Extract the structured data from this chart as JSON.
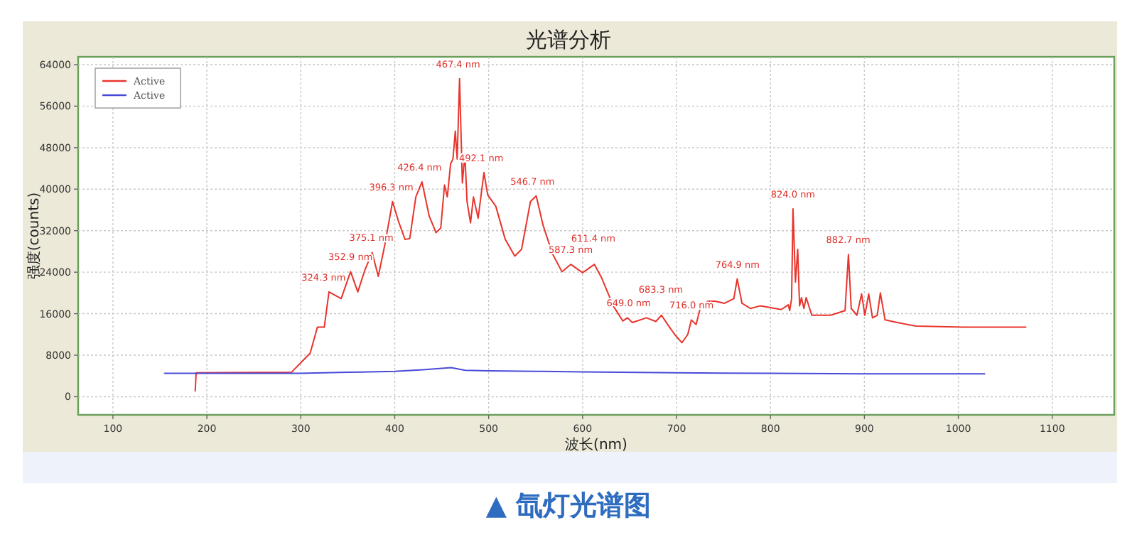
{
  "chart_data": {
    "type": "line",
    "title": "光谱分析",
    "xlabel": "波长(nm)",
    "ylabel": "强度(counts)",
    "xlim": [
      63,
      1166
    ],
    "ylim": [
      -3500,
      65500
    ],
    "xticks": [
      100,
      200,
      300,
      400,
      500,
      600,
      700,
      800,
      900,
      1000,
      1100
    ],
    "yticks": [
      0,
      8000,
      16000,
      24000,
      32000,
      40000,
      48000,
      56000,
      64000
    ],
    "grid": true,
    "legend": "top left",
    "series": [
      {
        "name": "Active",
        "color": "#e8342c",
        "x": [
          187.6,
          188.6,
          290,
          302.5,
          310,
          317.7,
          325,
          330,
          343,
          353,
          360.7,
          368,
          376,
          382.5,
          389.6,
          397.7,
          403.8,
          411,
          416,
          422.5,
          429,
          436.7,
          444,
          449,
          453,
          456,
          459.5,
          462,
          464.5,
          466.5,
          469,
          472,
          474.7,
          477,
          480.7,
          483.8,
          488.8,
          495,
          499,
          507.6,
          517.7,
          527.8,
          535,
          544.5,
          550.6,
          558,
          568,
          578,
          587.4,
          600,
          612.6,
          620,
          632.7,
          642.8,
          647.8,
          653,
          668,
          678,
          684,
          690.6,
          698,
          705.7,
          712,
          715.8,
          720.8,
          725.9,
          733.4,
          741,
          751,
          761,
          764.6,
          769.7,
          778.7,
          788.8,
          799,
          811.5,
          819,
          820.5,
          822.5,
          824,
          826.6,
          829,
          831,
          833,
          835.6,
          838,
          841.7,
          844,
          864,
          879.4,
          883,
          886,
          892,
          897,
          900.5,
          904.6,
          908.6,
          913.7,
          917,
          922,
          935,
          955,
          1005,
          1071.8
        ],
        "values": [
          1100,
          4600,
          4700,
          7000,
          8400,
          13400,
          13400,
          20200,
          18900,
          24100,
          20200,
          24300,
          27800,
          23200,
          29400,
          37600,
          33900,
          30300,
          30500,
          38500,
          41400,
          34800,
          31600,
          32500,
          40800,
          38500,
          44900,
          45800,
          51200,
          45800,
          61300,
          41200,
          46700,
          37600,
          33500,
          38500,
          34400,
          43200,
          38900,
          36700,
          30300,
          27100,
          28400,
          37600,
          38700,
          33000,
          27500,
          24100,
          25500,
          23900,
          25500,
          23000,
          17500,
          14600,
          15200,
          14300,
          15200,
          14500,
          15700,
          13900,
          12000,
          10400,
          12000,
          14800,
          13900,
          17500,
          18400,
          18400,
          18000,
          18900,
          22700,
          18000,
          17000,
          17500,
          17200,
          16800,
          17700,
          16600,
          18900,
          36200,
          22100,
          28400,
          17500,
          19100,
          17000,
          19100,
          17000,
          15700,
          15700,
          16600,
          27400,
          17000,
          15700,
          19800,
          15700,
          19800,
          15200,
          15700,
          20000,
          14800,
          14300,
          13600,
          13400,
          13400
        ]
      },
      {
        "name": "Active",
        "color": "#4a4ad8",
        "x": [
          155,
          200,
          300,
          350,
          400,
          430,
          460,
          475,
          500,
          550,
          600,
          700,
          800,
          900,
          1028
        ],
        "values": [
          4500,
          4500,
          4500,
          4700,
          4900,
          5200,
          5600,
          5100,
          5000,
          4900,
          4800,
          4600,
          4500,
          4400,
          4400
        ]
      }
    ],
    "annotations": [
      {
        "text": "324.3 nm",
        "x": 324.3,
        "y": 20200
      },
      {
        "text": "352.9 nm",
        "x": 352.9,
        "y": 24100
      },
      {
        "text": "375.1 nm",
        "x": 375.1,
        "y": 27800
      },
      {
        "text": "396.3 nm",
        "x": 396.3,
        "y": 37600
      },
      {
        "text": "426.4 nm",
        "x": 426.4,
        "y": 41400
      },
      {
        "text": "467.4 nm",
        "x": 467.4,
        "y": 61300
      },
      {
        "text": "492.1 nm",
        "x": 492.1,
        "y": 43200
      },
      {
        "text": "546.7 nm",
        "x": 546.7,
        "y": 38700
      },
      {
        "text": "587.3 nm",
        "x": 587.3,
        "y": 25500
      },
      {
        "text": "611.4 nm",
        "x": 611.4,
        "y": 25500
      },
      {
        "text": "649.0 nm",
        "x": 649.0,
        "y": 15200
      },
      {
        "text": "683.3 nm",
        "x": 683.3,
        "y": 15700
      },
      {
        "text": "716.0 nm",
        "x": 716.0,
        "y": 14800
      },
      {
        "text": "764.9 nm",
        "x": 764.9,
        "y": 22700
      },
      {
        "text": "824.0 nm",
        "x": 824.0,
        "y": 36200
      },
      {
        "text": "882.7 nm",
        "x": 882.7,
        "y": 27400
      },
      "▲ 氙灯光谱图"
    ]
  }
}
